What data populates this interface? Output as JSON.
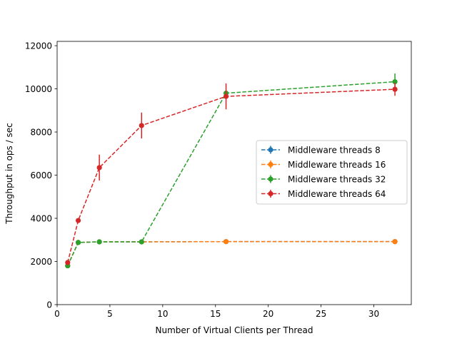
{
  "chart_data": {
    "type": "line",
    "title": "",
    "xlabel": "Number of Virtual Clients per Thread",
    "ylabel": "Throughput in ops / sec",
    "xlim": [
      0,
      33.55
    ],
    "ylim": [
      0,
      12200
    ],
    "x_ticks": [
      0,
      5,
      10,
      15,
      20,
      25,
      30
    ],
    "y_ticks": [
      0,
      2000,
      4000,
      6000,
      8000,
      10000,
      12000
    ],
    "x_tick_labels": [
      "0",
      "5",
      "10",
      "15",
      "20",
      "25",
      "30"
    ],
    "y_tick_labels": [
      "0",
      "2000",
      "4000",
      "6000",
      "8000",
      "10000",
      "12000"
    ],
    "grid": false,
    "legend_position": "center-right",
    "line_style": "dashed",
    "marker": "circle",
    "series": [
      {
        "name": "Middleware threads 8",
        "color": "#1f77b4",
        "x": [
          1,
          2,
          4,
          8,
          16,
          32
        ],
        "y": [
          1800,
          2880,
          2910,
          2910,
          2920,
          2920
        ],
        "err": [
          0,
          0,
          0,
          0,
          0,
          0
        ]
      },
      {
        "name": "Middleware threads 16",
        "color": "#ff7f0e",
        "x": [
          1,
          2,
          4,
          8,
          16,
          32
        ],
        "y": [
          1800,
          2880,
          2910,
          2910,
          2920,
          2920
        ],
        "err": [
          0,
          0,
          0,
          0,
          0,
          0
        ]
      },
      {
        "name": "Middleware threads 32",
        "color": "#2ca02c",
        "x": [
          1,
          2,
          4,
          8,
          16,
          32
        ],
        "y": [
          1800,
          2880,
          2910,
          2910,
          9800,
          10330
        ],
        "err": [
          0,
          0,
          0,
          0,
          0,
          380
        ]
      },
      {
        "name": "Middleware threads 64",
        "color": "#d62728",
        "x": [
          1,
          2,
          4,
          8,
          16,
          32
        ],
        "y": [
          1950,
          3900,
          6350,
          8300,
          9650,
          9980
        ],
        "err": [
          0,
          0,
          600,
          600,
          600,
          300
        ]
      }
    ]
  }
}
